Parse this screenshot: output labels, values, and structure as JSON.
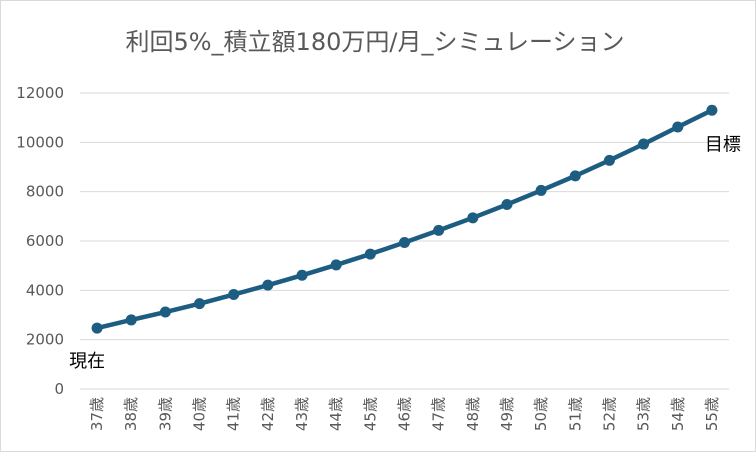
{
  "chart_data": {
    "type": "line",
    "title": "利回5%_積立額180万円/月_シミュレーション",
    "xlabel": "",
    "ylabel": "",
    "categories": [
      "37歳",
      "38歳",
      "39歳",
      "40歳",
      "41歳",
      "42歳",
      "43歳",
      "44歳",
      "45歳",
      "46歳",
      "47歳",
      "48歳",
      "49歳",
      "50歳",
      "51歳",
      "52歳",
      "53歳",
      "54歳",
      "55歳"
    ],
    "series": [
      {
        "values": [
          2470,
          2800,
          3120,
          3460,
          3830,
          4210,
          4610,
          5030,
          5470,
          5940,
          6430,
          6940,
          7480,
          8050,
          8640,
          9270,
          9930,
          10620,
          11300
        ],
        "color": "#1e5d82"
      }
    ],
    "ylim": [
      0,
      12000
    ],
    "yticks": [
      0,
      2000,
      4000,
      6000,
      8000,
      10000,
      12000
    ],
    "grid": true,
    "annotations": [
      {
        "text": "現在",
        "category": "37歳"
      },
      {
        "text": "目標",
        "category": "55歳"
      }
    ]
  }
}
